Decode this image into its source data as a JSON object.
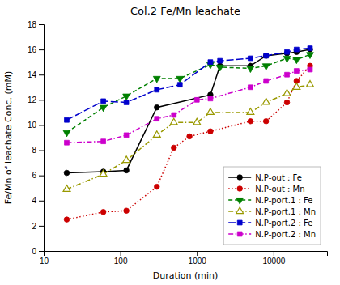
{
  "chart_data": {
    "type": "line",
    "title": "Col.2 Fe/Mn leachate",
    "xlabel": "Duration (min)",
    "ylabel": "Fe/Mn of leachate Conc. (mM)",
    "log": "x",
    "xlim": [
      10,
      50000
    ],
    "ylim": [
      0,
      18
    ],
    "xticks": [
      10,
      100,
      1000,
      10000
    ],
    "yticks": [
      0,
      2,
      4,
      6,
      8,
      10,
      12,
      14,
      16,
      18
    ],
    "grid": false,
    "legend": "lower-right",
    "series": [
      {
        "name": "N.P-out : Fe",
        "color": "#000000",
        "marker": "circle",
        "line_style": "solid",
        "x": [
          20,
          60,
          120,
          300,
          1500,
          2000,
          5000,
          8000,
          15000,
          20000,
          30000
        ],
        "values": [
          6.2,
          6.3,
          6.4,
          11.4,
          12.4,
          14.7,
          14.7,
          15.5,
          15.7,
          15.8,
          16.0
        ]
      },
      {
        "name": "N.P-out : Mn",
        "color": "#cc0000",
        "marker": "circle",
        "line_style": "dotted",
        "x": [
          20,
          60,
          120,
          300,
          500,
          800,
          1500,
          5000,
          8000,
          15000,
          20000,
          30000
        ],
        "values": [
          2.5,
          3.1,
          3.2,
          5.1,
          8.2,
          9.1,
          9.5,
          10.3,
          10.3,
          11.8,
          13.5,
          14.7
        ]
      },
      {
        "name": "N.P-port.1 : Fe",
        "color": "#008000",
        "marker": "triangle-down",
        "line_style": "dashed",
        "x": [
          20,
          60,
          120,
          300,
          600,
          1500,
          2000,
          5000,
          8000,
          15000,
          20000,
          30000
        ],
        "values": [
          9.4,
          11.4,
          12.3,
          13.7,
          13.7,
          14.8,
          14.6,
          14.5,
          14.7,
          15.3,
          15.2,
          15.6
        ]
      },
      {
        "name": "N.P-port.1 : Mn",
        "color": "#999900",
        "marker": "open-triangle-up",
        "line_style": "dash-dot",
        "x": [
          20,
          60,
          120,
          300,
          500,
          1000,
          1500,
          5000,
          8000,
          15000,
          20000,
          30000
        ],
        "values": [
          4.9,
          6.1,
          7.2,
          9.2,
          10.2,
          10.2,
          11.0,
          11.0,
          11.8,
          12.5,
          13.0,
          13.2
        ]
      },
      {
        "name": "N.P-port.2 : Fe",
        "color": "#0000cc",
        "marker": "square",
        "line_style": "long-dash",
        "x": [
          20,
          60,
          120,
          300,
          600,
          1500,
          2000,
          5000,
          8000,
          15000,
          20000,
          30000
        ],
        "values": [
          10.4,
          11.9,
          11.8,
          12.8,
          13.2,
          15.0,
          15.1,
          15.3,
          15.5,
          15.8,
          16.0,
          16.1
        ]
      },
      {
        "name": "N.P-port.2 : Mn",
        "color": "#cc00cc",
        "marker": "square",
        "line_style": "dash-dot",
        "x": [
          20,
          60,
          120,
          300,
          500,
          1000,
          1500,
          5000,
          8000,
          15000,
          20000,
          30000
        ],
        "values": [
          8.6,
          8.7,
          9.2,
          10.5,
          10.8,
          12.0,
          12.1,
          13.0,
          13.5,
          14.0,
          14.3,
          14.4
        ]
      }
    ]
  }
}
